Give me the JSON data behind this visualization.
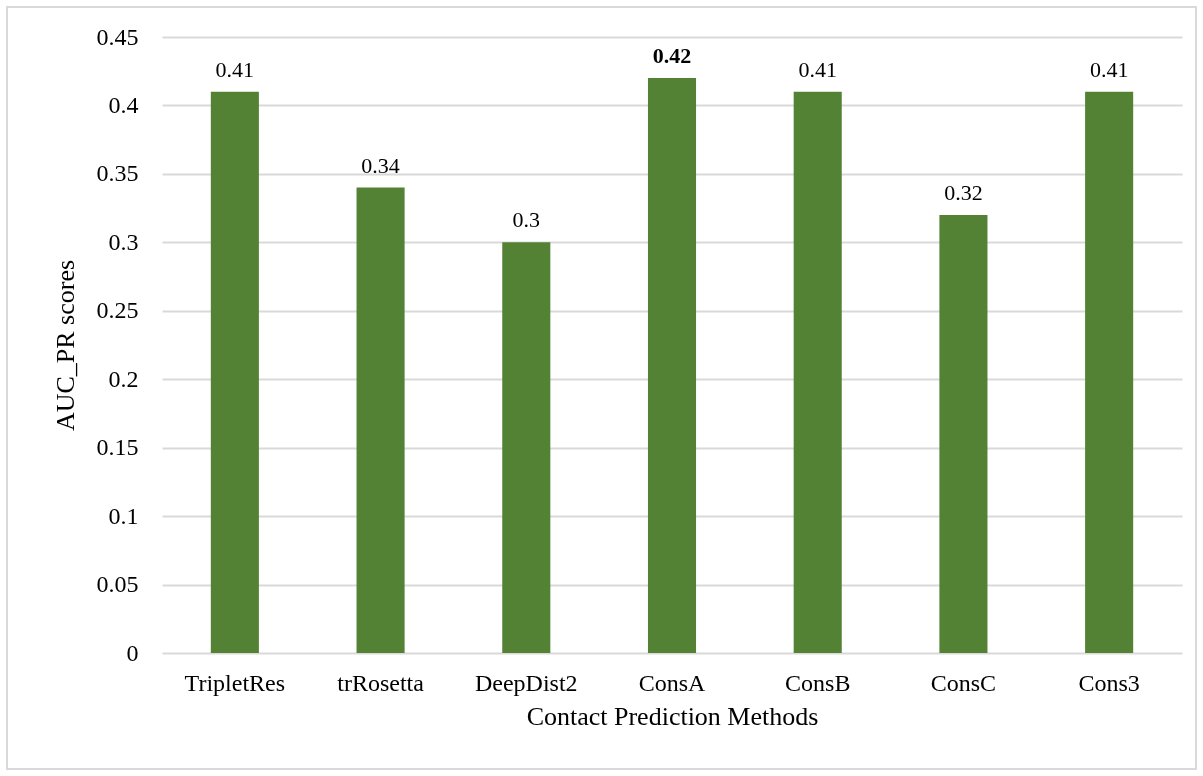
{
  "chart_data": {
    "type": "bar",
    "xlabel": "Contact Prediction Methods",
    "ylabel": "AUC_PR scores",
    "categories": [
      "TripletRes",
      "trRosetta",
      "DeepDist2",
      "ConsA",
      "ConsB",
      "ConsC",
      "Cons3"
    ],
    "values": [
      0.41,
      0.34,
      0.3,
      0.42,
      0.41,
      0.32,
      0.41
    ],
    "color": "#548235",
    "ylim": [
      0,
      0.45
    ],
    "yticks": [
      0,
      0.05,
      0.1,
      0.15,
      0.2,
      0.25,
      0.3,
      0.35,
      0.4,
      0.45
    ],
    "grid": "y",
    "data_labels": true
  }
}
